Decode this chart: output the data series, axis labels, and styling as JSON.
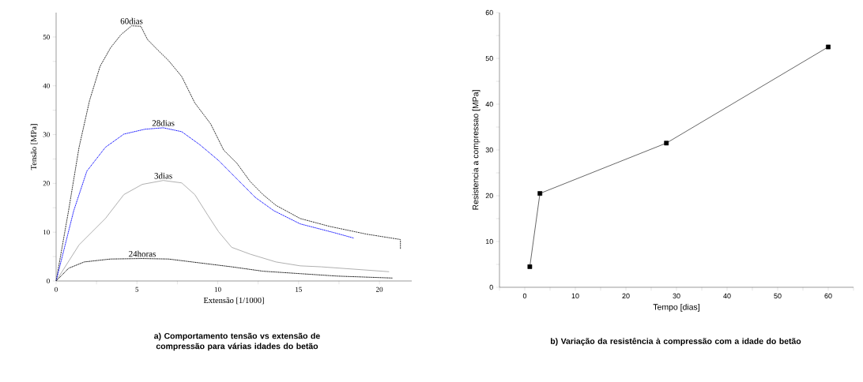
{
  "chart_data": [
    {
      "type": "line",
      "xlabel": "Extensão [1/1000]",
      "ylabel": "Tensão [MPa]",
      "xlim": [
        0,
        22
      ],
      "ylim": [
        0,
        55
      ],
      "xticks": [
        0,
        {
          "value": 2.5,
          "label": null
        },
        5,
        {
          "value": 7.5,
          "label": null
        },
        10,
        {
          "value": 12.5,
          "label": null
        },
        15,
        {
          "value": 17.5,
          "label": null
        },
        20
      ],
      "yticks": [
        0,
        {
          "value": 5,
          "label": null
        },
        10,
        {
          "value": 15,
          "label": null
        },
        20,
        {
          "value": 25,
          "label": null
        },
        30,
        {
          "value": 35,
          "label": null
        },
        40,
        {
          "value": 45,
          "label": null
        },
        50
      ],
      "grid": false,
      "legend": false,
      "series": [
        {
          "name": "60dias",
          "color": "#333333",
          "line_style": "dashed",
          "x": [
            0,
            0.77,
            1.42,
            2.07,
            2.72,
            3.37,
            4.02,
            4.67,
            5.24,
            5.65,
            6.3,
            6.95,
            7.77,
            8.58,
            9.56,
            10.37,
            11.19,
            12,
            12.8,
            13.6,
            15.1,
            16.9,
            19.2,
            21.3,
            21.3
          ],
          "values": [
            0,
            14.4,
            27.4,
            37,
            44,
            47.8,
            50.5,
            52.3,
            52.2,
            49.5,
            47.3,
            45.2,
            41.9,
            36.5,
            32.2,
            26.8,
            24.1,
            20.4,
            17.7,
            15.5,
            12.8,
            11.2,
            9.6,
            8.5,
            6.6
          ]
        },
        {
          "name": "28dias",
          "color": "#0000ff",
          "line_style": "dotted",
          "x": [
            0,
            1.09,
            1.9,
            3.05,
            4.19,
            5.49,
            6.63,
            7.77,
            8.9,
            10.05,
            11.19,
            12.33,
            13.47,
            15.1,
            17.2,
            18.4
          ],
          "values": [
            0,
            14.4,
            22.5,
            27.4,
            30.1,
            31.1,
            31.4,
            30.6,
            27.9,
            24.7,
            20.9,
            17.1,
            14.4,
            11.7,
            9.9,
            8.8
          ]
        },
        {
          "name": "3dias",
          "color": "#b0b0b0",
          "line_style": "solid",
          "x": [
            0,
            1.42,
            3.05,
            4.19,
            5.33,
            6.63,
            7.77,
            8.58,
            9.4,
            10.05,
            10.86,
            12,
            13.6,
            15.1,
            16.4,
            20.6
          ],
          "values": [
            0,
            7.4,
            12.8,
            17.7,
            19.8,
            20.6,
            20.1,
            17.7,
            13.4,
            10.1,
            6.9,
            5.5,
            3.9,
            3.1,
            2.9,
            1.9
          ]
        },
        {
          "name": "24horas",
          "color": "#000000",
          "line_style": "dotted",
          "x": [
            0,
            0.77,
            1.74,
            3.37,
            5.33,
            6.95,
            8.9,
            10.86,
            12.8,
            15.1,
            17.4,
            20.8
          ],
          "values": [
            0,
            2.6,
            3.9,
            4.5,
            4.6,
            4.5,
            3.7,
            2.9,
            2.0,
            1.5,
            1.0,
            0.6
          ]
        }
      ],
      "annotations": [
        "a) Comportamento tensão vs extensão de compressão para várias idades do betão"
      ]
    },
    {
      "type": "line",
      "xlabel": "Tempo [dias]",
      "ylabel": "Resistencia a compressao [MPa]",
      "xlim": [
        -5,
        65
      ],
      "ylim": [
        0,
        60
      ],
      "xticks": [
        {
          "value": -5,
          "label": null
        },
        0,
        {
          "value": 5,
          "label": null
        },
        10,
        {
          "value": 15,
          "label": null
        },
        20,
        {
          "value": 25,
          "label": null
        },
        30,
        {
          "value": 35,
          "label": null
        },
        40,
        {
          "value": 45,
          "label": null
        },
        50,
        {
          "value": 55,
          "label": null
        },
        60,
        {
          "value": 65,
          "label": null
        }
      ],
      "yticks": [
        0,
        {
          "value": 5,
          "label": null
        },
        10,
        {
          "value": 15,
          "label": null
        },
        20,
        {
          "value": 25,
          "label": null
        },
        30,
        {
          "value": 35,
          "label": null
        },
        40,
        {
          "value": 45,
          "label": null
        },
        50,
        {
          "value": 55,
          "label": null
        },
        60
      ],
      "grid": false,
      "legend": false,
      "marker": "square",
      "line_style": "solid",
      "x": [
        1,
        3,
        28,
        60
      ],
      "values": [
        4.5,
        20.5,
        31.5,
        52.5
      ],
      "color": "#000000",
      "annotations": [
        "b) Variação da resistência à compressão com a idade do betão"
      ]
    }
  ]
}
